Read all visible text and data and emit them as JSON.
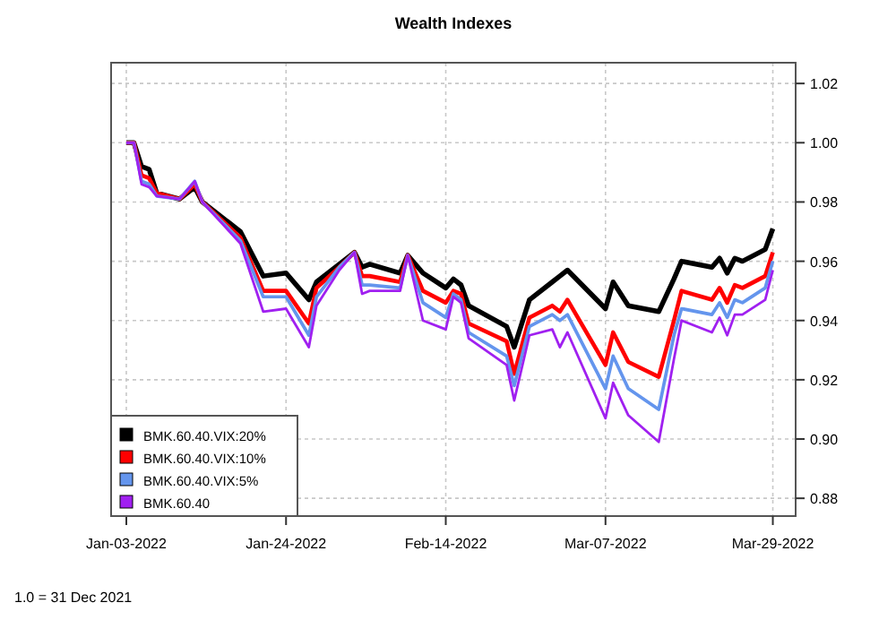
{
  "chart_data": {
    "type": "line",
    "title": "Wealth Indexes",
    "annotations": [
      "1.0 = 31 Dec 2021"
    ],
    "x": [
      "2022-01-03",
      "2022-01-04",
      "2022-01-05",
      "2022-01-06",
      "2022-01-07",
      "2022-01-10",
      "2022-01-12",
      "2022-01-13",
      "2022-01-18",
      "2022-01-21",
      "2022-01-24",
      "2022-01-27",
      "2022-01-28",
      "2022-01-31",
      "2022-02-02",
      "2022-02-03",
      "2022-02-04",
      "2022-02-08",
      "2022-02-09",
      "2022-02-11",
      "2022-02-14",
      "2022-02-15",
      "2022-02-16",
      "2022-02-17",
      "2022-02-22",
      "2022-02-23",
      "2022-02-25",
      "2022-02-28",
      "2022-03-01",
      "2022-03-02",
      "2022-03-07",
      "2022-03-08",
      "2022-03-10",
      "2022-03-14",
      "2022-03-16",
      "2022-03-17",
      "2022-03-21",
      "2022-03-22",
      "2022-03-23",
      "2022-03-24",
      "2022-03-25",
      "2022-03-28",
      "2022-03-29"
    ],
    "series": [
      {
        "name": "BMK.60.40.VIX:20%",
        "color": "#000000",
        "values": [
          1.0,
          1.0,
          0.992,
          0.991,
          0.983,
          0.981,
          0.985,
          0.98,
          0.97,
          0.955,
          0.956,
          0.947,
          0.953,
          0.959,
          0.963,
          0.958,
          0.959,
          0.956,
          0.962,
          0.956,
          0.951,
          0.954,
          0.952,
          0.945,
          0.938,
          0.931,
          0.947,
          0.953,
          0.955,
          0.957,
          0.944,
          0.953,
          0.945,
          0.943,
          0.954,
          0.96,
          0.958,
          0.961,
          0.956,
          0.961,
          0.96,
          0.964,
          0.971
        ]
      },
      {
        "name": "BMK.60.40.VIX:10%",
        "color": "#ff0000",
        "values": [
          1.0,
          1.0,
          0.989,
          0.988,
          0.983,
          0.981,
          0.986,
          0.98,
          0.968,
          0.95,
          0.95,
          0.939,
          0.951,
          0.958,
          0.963,
          0.955,
          0.955,
          0.953,
          0.962,
          0.95,
          0.946,
          0.95,
          0.949,
          0.939,
          0.933,
          0.922,
          0.941,
          0.945,
          0.943,
          0.947,
          0.925,
          0.936,
          0.926,
          0.921,
          0.94,
          0.95,
          0.947,
          0.951,
          0.946,
          0.952,
          0.951,
          0.955,
          0.963
        ]
      },
      {
        "name": "BMK.60.40.VIX:5%",
        "color": "#6495ed",
        "values": [
          1.0,
          1.0,
          0.987,
          0.986,
          0.982,
          0.981,
          0.987,
          0.98,
          0.967,
          0.948,
          0.948,
          0.935,
          0.948,
          0.958,
          0.963,
          0.952,
          0.952,
          0.951,
          0.962,
          0.946,
          0.941,
          0.949,
          0.947,
          0.936,
          0.928,
          0.918,
          0.938,
          0.942,
          0.94,
          0.942,
          0.917,
          0.928,
          0.917,
          0.91,
          0.935,
          0.944,
          0.942,
          0.946,
          0.941,
          0.947,
          0.946,
          0.951,
          0.96
        ]
      },
      {
        "name": "BMK.60.40",
        "color": "#a020f0",
        "values": [
          1.0,
          1.0,
          0.986,
          0.985,
          0.982,
          0.981,
          0.987,
          0.98,
          0.966,
          0.943,
          0.944,
          0.931,
          0.945,
          0.957,
          0.963,
          0.949,
          0.95,
          0.95,
          0.962,
          0.94,
          0.937,
          0.948,
          0.946,
          0.934,
          0.925,
          0.913,
          0.935,
          0.937,
          0.931,
          0.936,
          0.907,
          0.919,
          0.908,
          0.899,
          0.927,
          0.94,
          0.936,
          0.941,
          0.935,
          0.942,
          0.942,
          0.947,
          0.957
        ]
      }
    ],
    "xlim": [
      "2022-01-01",
      "2022-04-01"
    ],
    "xticks": [
      {
        "value": "2022-01-03",
        "label": "Jan-03-2022"
      },
      {
        "value": "2022-01-24",
        "label": "Jan-24-2022"
      },
      {
        "value": "2022-02-14",
        "label": "Feb-14-2022"
      },
      {
        "value": "2022-03-07",
        "label": "Mar-07-2022"
      },
      {
        "value": "2022-03-29",
        "label": "Mar-29-2022"
      }
    ],
    "ylim": [
      0.874,
      1.027
    ],
    "yticks": [
      0.88,
      {
        "value": 0.9,
        "label": "0.90"
      },
      0.92,
      0.94,
      0.96,
      0.98,
      {
        "value": 1,
        "label": "1.00"
      },
      1.02
    ],
    "grid": true,
    "legend": "bottom left"
  }
}
